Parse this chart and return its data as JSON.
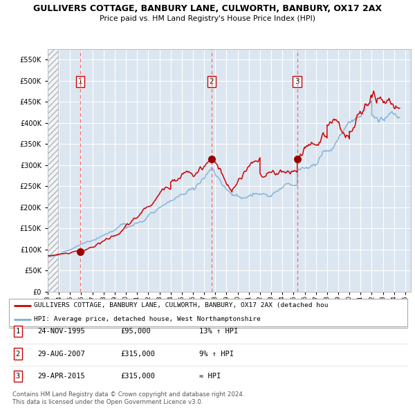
{
  "title": "GULLIVERS COTTAGE, BANBURY LANE, CULWORTH, BANBURY, OX17 2AX",
  "subtitle": "Price paid vs. HM Land Registry's House Price Index (HPI)",
  "ylim": [
    0,
    575000
  ],
  "yticks": [
    0,
    50000,
    100000,
    150000,
    200000,
    250000,
    300000,
    350000,
    400000,
    450000,
    500000,
    550000
  ],
  "xlim_start": 1993.0,
  "xlim_end": 2025.5,
  "sale_dates": [
    1995.9,
    2007.67,
    2015.33
  ],
  "sale_prices": [
    95000,
    315000,
    315000
  ],
  "sale_labels": [
    "1",
    "2",
    "3"
  ],
  "hatch_end": 1993.9,
  "plot_bg": "#dce6f0",
  "grid_color": "#ffffff",
  "red_line_color": "#cc0000",
  "blue_line_color": "#7bafd4",
  "marker_color": "#990000",
  "dashed_line_color": "#ff6666",
  "legend_line1": "GULLIVERS COTTAGE, BANBURY LANE, CULWORTH, BANBURY, OX17 2AX (detached hou",
  "legend_line2": "HPI: Average price, detached house, West Northamptonshire",
  "table_data": [
    [
      "1",
      "24-NOV-1995",
      "£95,000",
      "13% ↑ HPI"
    ],
    [
      "2",
      "29-AUG-2007",
      "£315,000",
      "9% ↑ HPI"
    ],
    [
      "3",
      "29-APR-2015",
      "£315,000",
      "≈ HPI"
    ]
  ],
  "footnote": "Contains HM Land Registry data © Crown copyright and database right 2024.\nThis data is licensed under the Open Government Licence v3.0."
}
